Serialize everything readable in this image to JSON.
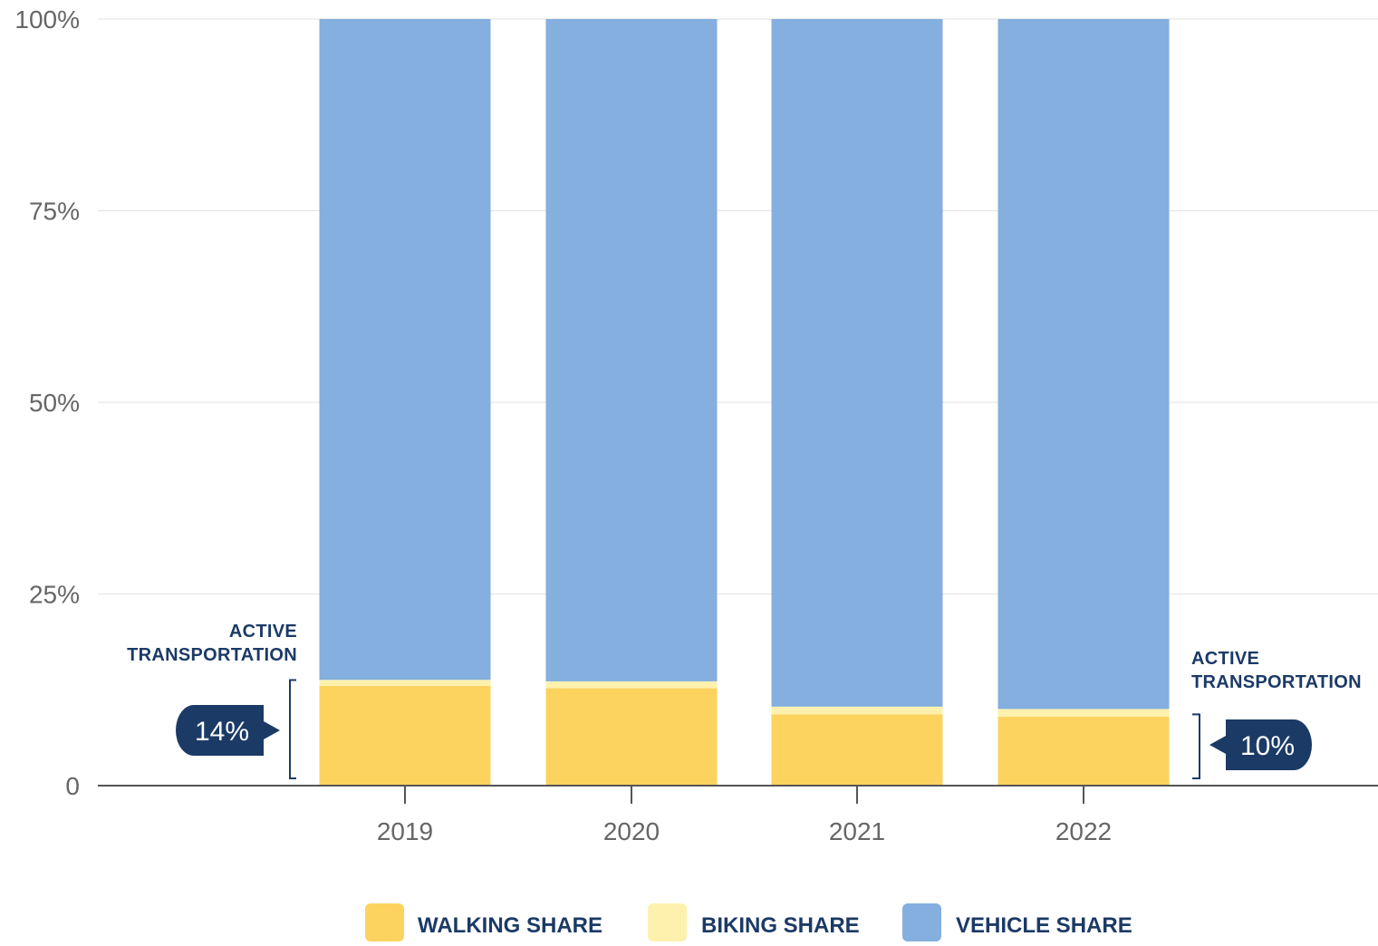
{
  "chart_data": {
    "type": "bar",
    "stacked": true,
    "categories": [
      "2019",
      "2020",
      "2021",
      "2022"
    ],
    "series": [
      {
        "name": "WALKING SHARE",
        "color": "#fdd35f",
        "values": [
          13.0,
          12.7,
          9.3,
          9.0
        ]
      },
      {
        "name": "BIKING SHARE",
        "color": "#fdf1ad",
        "values": [
          0.8,
          0.9,
          1.0,
          1.0
        ]
      },
      {
        "name": "VEHICLE SHARE",
        "color": "#84afde",
        "values": [
          86.2,
          86.4,
          89.7,
          90.0
        ]
      }
    ],
    "ylim": [
      0,
      100
    ],
    "yticks": [
      {
        "value": 0,
        "label": "0"
      },
      {
        "value": 25,
        "label": "25%"
      },
      {
        "value": 50,
        "label": "50%"
      },
      {
        "value": 75,
        "label": "75%"
      },
      {
        "value": 100,
        "label": "100%"
      }
    ],
    "grid": true,
    "legend_position": "bottom",
    "annotations": [
      {
        "label_line1": "ACTIVE",
        "label_line2": "TRANSPORTATION",
        "callout": "14%",
        "category": "2019",
        "side": "left",
        "value": 14
      },
      {
        "label_line1": "ACTIVE",
        "label_line2": "TRANSPORTATION",
        "callout": "10%",
        "category": "2022",
        "side": "right",
        "value": 10
      }
    ],
    "accent_color": "#1b3a66"
  }
}
